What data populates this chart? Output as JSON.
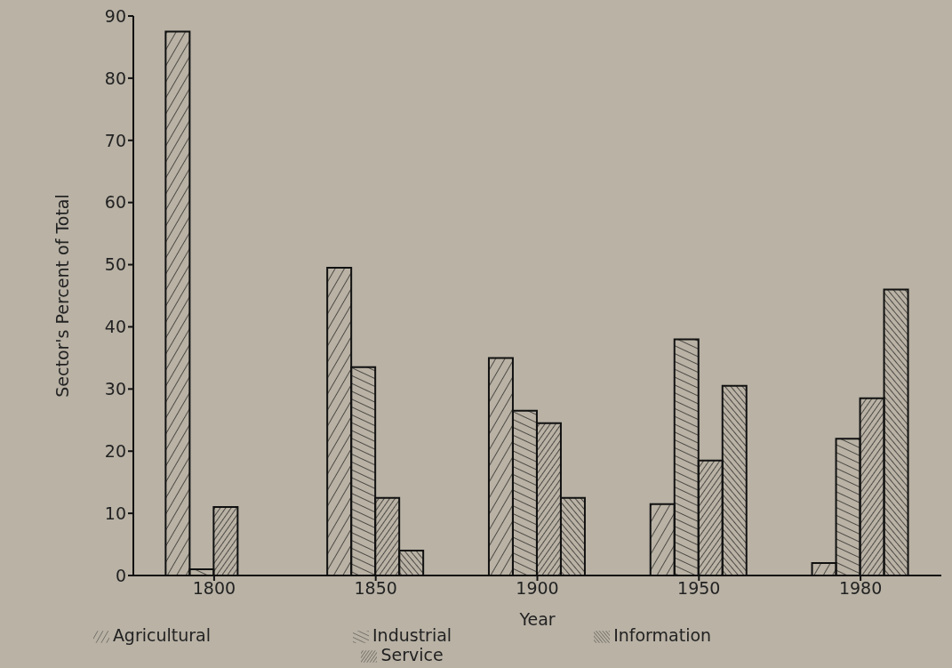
{
  "chart_data": {
    "type": "bar",
    "xlabel": "Year",
    "ylabel": "Sector's Percent of Total",
    "categories": [
      "1800",
      "1850",
      "1900",
      "1950",
      "1980"
    ],
    "series": [
      {
        "name": "Agricultural",
        "color": "#111111",
        "values": [
          87.5,
          49.5,
          35,
          11.5,
          2
        ]
      },
      {
        "name": "Industrial",
        "color": "#111111",
        "values": [
          1,
          33.5,
          26.5,
          38,
          22
        ]
      },
      {
        "name": "Service",
        "color": "#111111",
        "values": [
          11,
          12.5,
          24.5,
          18.5,
          28.5
        ]
      },
      {
        "name": "Information",
        "color": "#111111",
        "values": [
          null,
          4,
          12.5,
          30.5,
          46
        ]
      }
    ],
    "ylim": [
      0,
      90
    ],
    "yticks": [
      0,
      10,
      20,
      30,
      40,
      50,
      60,
      70,
      80,
      90
    ],
    "grid": false,
    "legend": "bottom"
  }
}
